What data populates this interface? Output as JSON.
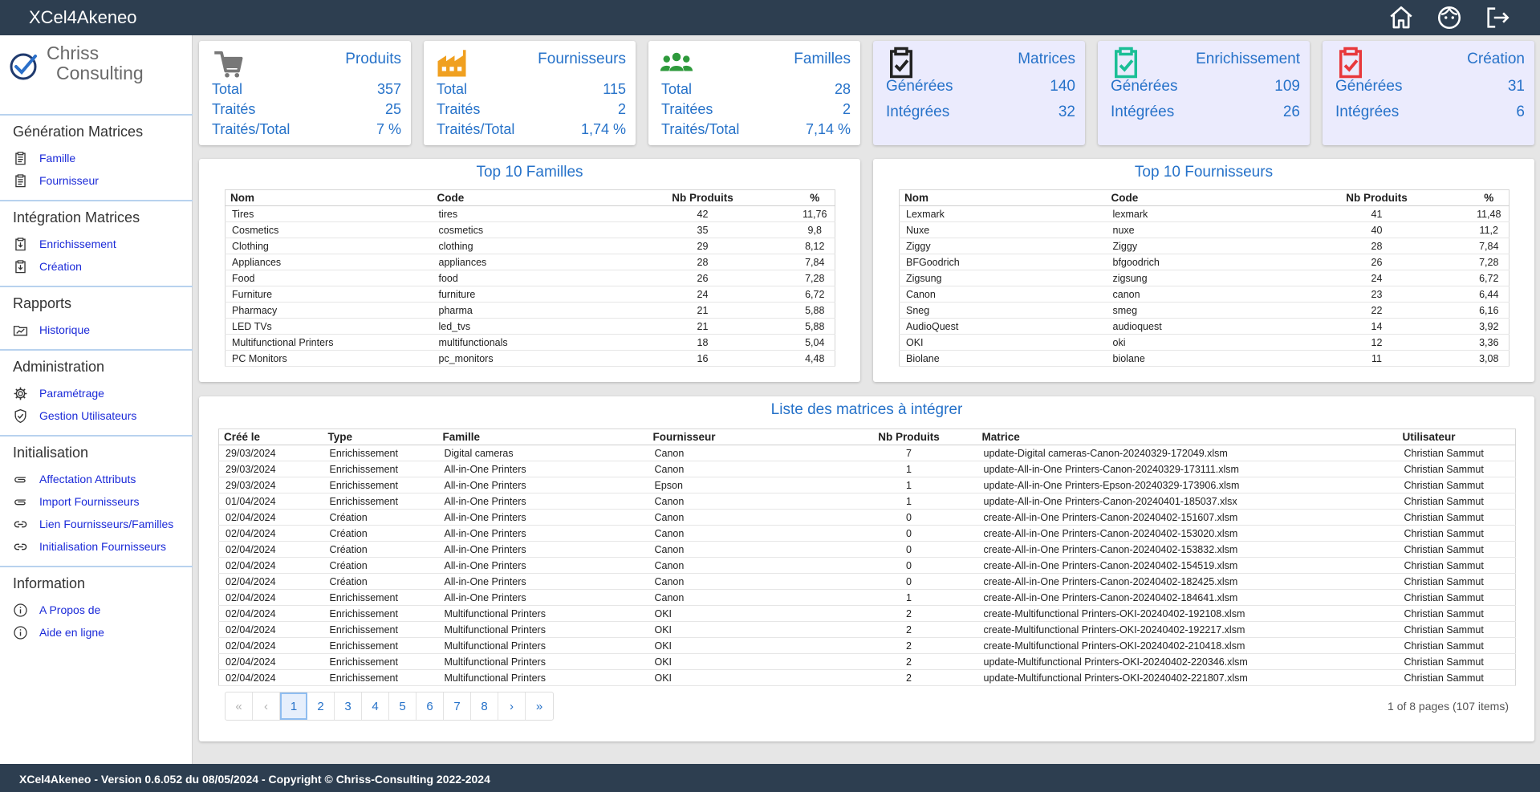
{
  "app": {
    "title": "XCel4Akeneo"
  },
  "header_icons": [
    "home-icon",
    "face-icon",
    "logout-icon"
  ],
  "logo": {
    "line1": "Chriss",
    "line2": "Consulting"
  },
  "sidebar": [
    {
      "heading": "Génération Matrices",
      "items": [
        {
          "label": "Famille",
          "icon": "clipboard-icon"
        },
        {
          "label": "Fournisseur",
          "icon": "clipboard-icon"
        }
      ]
    },
    {
      "heading": "Intégration Matrices",
      "items": [
        {
          "label": "Enrichissement",
          "icon": "download-box-icon"
        },
        {
          "label": "Création",
          "icon": "download-box-icon"
        }
      ]
    },
    {
      "heading": "Rapports",
      "items": [
        {
          "label": "Historique",
          "icon": "folder-chart-icon"
        }
      ]
    },
    {
      "heading": "Administration",
      "items": [
        {
          "label": "Paramétrage",
          "icon": "gear-icon"
        },
        {
          "label": "Gestion Utilisateurs",
          "icon": "shield-check-icon"
        }
      ]
    },
    {
      "heading": "Initialisation",
      "items": [
        {
          "label": "Affectation Attributs",
          "icon": "paperclip-icon"
        },
        {
          "label": "Import Fournisseurs",
          "icon": "paperclip-icon"
        },
        {
          "label": "Lien Fournisseurs/Familles",
          "icon": "link-icon"
        },
        {
          "label": "Initialisation Fournisseurs",
          "icon": "link-icon"
        }
      ]
    },
    {
      "heading": "Information",
      "items": [
        {
          "label": "A Propos de",
          "icon": "info-icon"
        },
        {
          "label": "Aide en ligne",
          "icon": "info-icon"
        }
      ]
    }
  ],
  "stats": [
    {
      "title": "Produits",
      "icon": "cart-icon",
      "color": "#777777",
      "rows": [
        {
          "label": "Total",
          "value": "357"
        },
        {
          "label": "Traités",
          "value": "25"
        },
        {
          "label": "Traités/Total",
          "value": "7 %"
        }
      ]
    },
    {
      "title": "Fournisseurs",
      "icon": "factory-icon",
      "color": "#f0a020",
      "rows": [
        {
          "label": "Total",
          "value": "115"
        },
        {
          "label": "Traités",
          "value": "2"
        },
        {
          "label": "Traités/Total",
          "value": "1,74 %"
        }
      ]
    },
    {
      "title": "Familles",
      "icon": "people-icon",
      "color": "#2e9a3c",
      "rows": [
        {
          "label": "Total",
          "value": "28"
        },
        {
          "label": "Traitées",
          "value": "2"
        },
        {
          "label": "Traités/Total",
          "value": "7,14 %"
        }
      ]
    },
    {
      "title": "Matrices",
      "icon": "clipboard-check-icon",
      "color": "#222222",
      "rows": [
        {
          "label": "Générées",
          "value": "140"
        },
        {
          "label": "Intégrées",
          "value": "32"
        }
      ]
    },
    {
      "title": "Enrichissement",
      "icon": "clipboard-check-icon",
      "color": "#1bbf96",
      "rows": [
        {
          "label": "Générées",
          "value": "109"
        },
        {
          "label": "Intégrées",
          "value": "26"
        }
      ]
    },
    {
      "title": "Création",
      "icon": "clipboard-check-icon",
      "color": "#e8383c",
      "rows": [
        {
          "label": "Générées",
          "value": "31"
        },
        {
          "label": "Intégrées",
          "value": "6"
        }
      ]
    }
  ],
  "top_familles": {
    "title": "Top 10 Familles",
    "columns": [
      "Nom",
      "Code",
      "Nb Produits",
      "%"
    ],
    "rows": [
      [
        "Tires",
        "tires",
        "42",
        "11,76"
      ],
      [
        "Cosmetics",
        "cosmetics",
        "35",
        "9,8"
      ],
      [
        "Clothing",
        "clothing",
        "29",
        "8,12"
      ],
      [
        "Appliances",
        "appliances",
        "28",
        "7,84"
      ],
      [
        "Food",
        "food",
        "26",
        "7,28"
      ],
      [
        "Furniture",
        "furniture",
        "24",
        "6,72"
      ],
      [
        "Pharmacy",
        "pharma",
        "21",
        "5,88"
      ],
      [
        "LED TVs",
        "led_tvs",
        "21",
        "5,88"
      ],
      [
        "Multifunctional Printers",
        "multifunctionals",
        "18",
        "5,04"
      ],
      [
        "PC Monitors",
        "pc_monitors",
        "16",
        "4,48"
      ]
    ]
  },
  "top_fournisseurs": {
    "title": "Top 10 Fournisseurs",
    "columns": [
      "Nom",
      "Code",
      "Nb Produits",
      "%"
    ],
    "rows": [
      [
        "Lexmark",
        "lexmark",
        "41",
        "11,48"
      ],
      [
        "Nuxe",
        "nuxe",
        "40",
        "11,2"
      ],
      [
        "Ziggy",
        "Ziggy",
        "28",
        "7,84"
      ],
      [
        "BFGoodrich",
        "bfgoodrich",
        "26",
        "7,28"
      ],
      [
        "Zigsung",
        "zigsung",
        "24",
        "6,72"
      ],
      [
        "Canon",
        "canon",
        "23",
        "6,44"
      ],
      [
        "Sneg",
        "smeg",
        "22",
        "6,16"
      ],
      [
        "AudioQuest",
        "audioquest",
        "14",
        "3,92"
      ],
      [
        "OKI",
        "oki",
        "12",
        "3,36"
      ],
      [
        "Biolane",
        "biolane",
        "11",
        "3,08"
      ]
    ]
  },
  "matrices": {
    "title": "Liste des matrices à intégrer",
    "columns": [
      "Créé le",
      "Type",
      "Famille",
      "Fournisseur",
      "Nb Produits",
      "Matrice",
      "Utilisateur"
    ],
    "rows": [
      [
        "29/03/2024",
        "Enrichissement",
        "Digital cameras",
        "Canon",
        "7",
        "update-Digital cameras-Canon-20240329-172049.xlsm",
        "Christian Sammut"
      ],
      [
        "29/03/2024",
        "Enrichissement",
        "All-in-One Printers",
        "Canon",
        "1",
        "update-All-in-One Printers-Canon-20240329-173111.xlsm",
        "Christian Sammut"
      ],
      [
        "29/03/2024",
        "Enrichissement",
        "All-in-One Printers",
        "Epson",
        "1",
        "update-All-in-One Printers-Epson-20240329-173906.xlsm",
        "Christian Sammut"
      ],
      [
        "01/04/2024",
        "Enrichissement",
        "All-in-One Printers",
        "Canon",
        "1",
        "update-All-in-One Printers-Canon-20240401-185037.xlsx",
        "Christian Sammut"
      ],
      [
        "02/04/2024",
        "Création",
        "All-in-One Printers",
        "Canon",
        "0",
        "create-All-in-One Printers-Canon-20240402-151607.xlsm",
        "Christian Sammut"
      ],
      [
        "02/04/2024",
        "Création",
        "All-in-One Printers",
        "Canon",
        "0",
        "create-All-in-One Printers-Canon-20240402-153020.xlsm",
        "Christian Sammut"
      ],
      [
        "02/04/2024",
        "Création",
        "All-in-One Printers",
        "Canon",
        "0",
        "create-All-in-One Printers-Canon-20240402-153832.xlsm",
        "Christian Sammut"
      ],
      [
        "02/04/2024",
        "Création",
        "All-in-One Printers",
        "Canon",
        "0",
        "create-All-in-One Printers-Canon-20240402-154519.xlsm",
        "Christian Sammut"
      ],
      [
        "02/04/2024",
        "Création",
        "All-in-One Printers",
        "Canon",
        "0",
        "create-All-in-One Printers-Canon-20240402-182425.xlsm",
        "Christian Sammut"
      ],
      [
        "02/04/2024",
        "Enrichissement",
        "All-in-One Printers",
        "Canon",
        "1",
        "create-All-in-One Printers-Canon-20240402-184641.xlsm",
        "Christian Sammut"
      ],
      [
        "02/04/2024",
        "Enrichissement",
        "Multifunctional Printers",
        "OKI",
        "2",
        "create-Multifunctional Printers-OKI-20240402-192108.xlsm",
        "Christian Sammut"
      ],
      [
        "02/04/2024",
        "Enrichissement",
        "Multifunctional Printers",
        "OKI",
        "2",
        "create-Multifunctional Printers-OKI-20240402-192217.xlsm",
        "Christian Sammut"
      ],
      [
        "02/04/2024",
        "Enrichissement",
        "Multifunctional Printers",
        "OKI",
        "2",
        "create-Multifunctional Printers-OKI-20240402-210418.xlsm",
        "Christian Sammut"
      ],
      [
        "02/04/2024",
        "Enrichissement",
        "Multifunctional Printers",
        "OKI",
        "2",
        "update-Multifunctional Printers-OKI-20240402-220346.xlsm",
        "Christian Sammut"
      ],
      [
        "02/04/2024",
        "Enrichissement",
        "Multifunctional Printers",
        "OKI",
        "2",
        "update-Multifunctional Printers-OKI-20240402-221807.xlsm",
        "Christian Sammut"
      ]
    ]
  },
  "pager": {
    "first": "«",
    "prev": "‹",
    "pages": [
      "1",
      "2",
      "3",
      "4",
      "5",
      "6",
      "7",
      "8"
    ],
    "current": "1",
    "next": "›",
    "last": "»",
    "info": "1 of 8 pages (107 items)"
  },
  "footer": {
    "text": "XCel4Akeneo - Version 0.6.052 du 08/05/2024 - Copyright © Chriss-Consulting 2022-2024"
  },
  "colors": {
    "header": "#2d3e50",
    "accent": "#2672c9",
    "link": "#1b2ad8",
    "tint": "#ebebfd"
  }
}
